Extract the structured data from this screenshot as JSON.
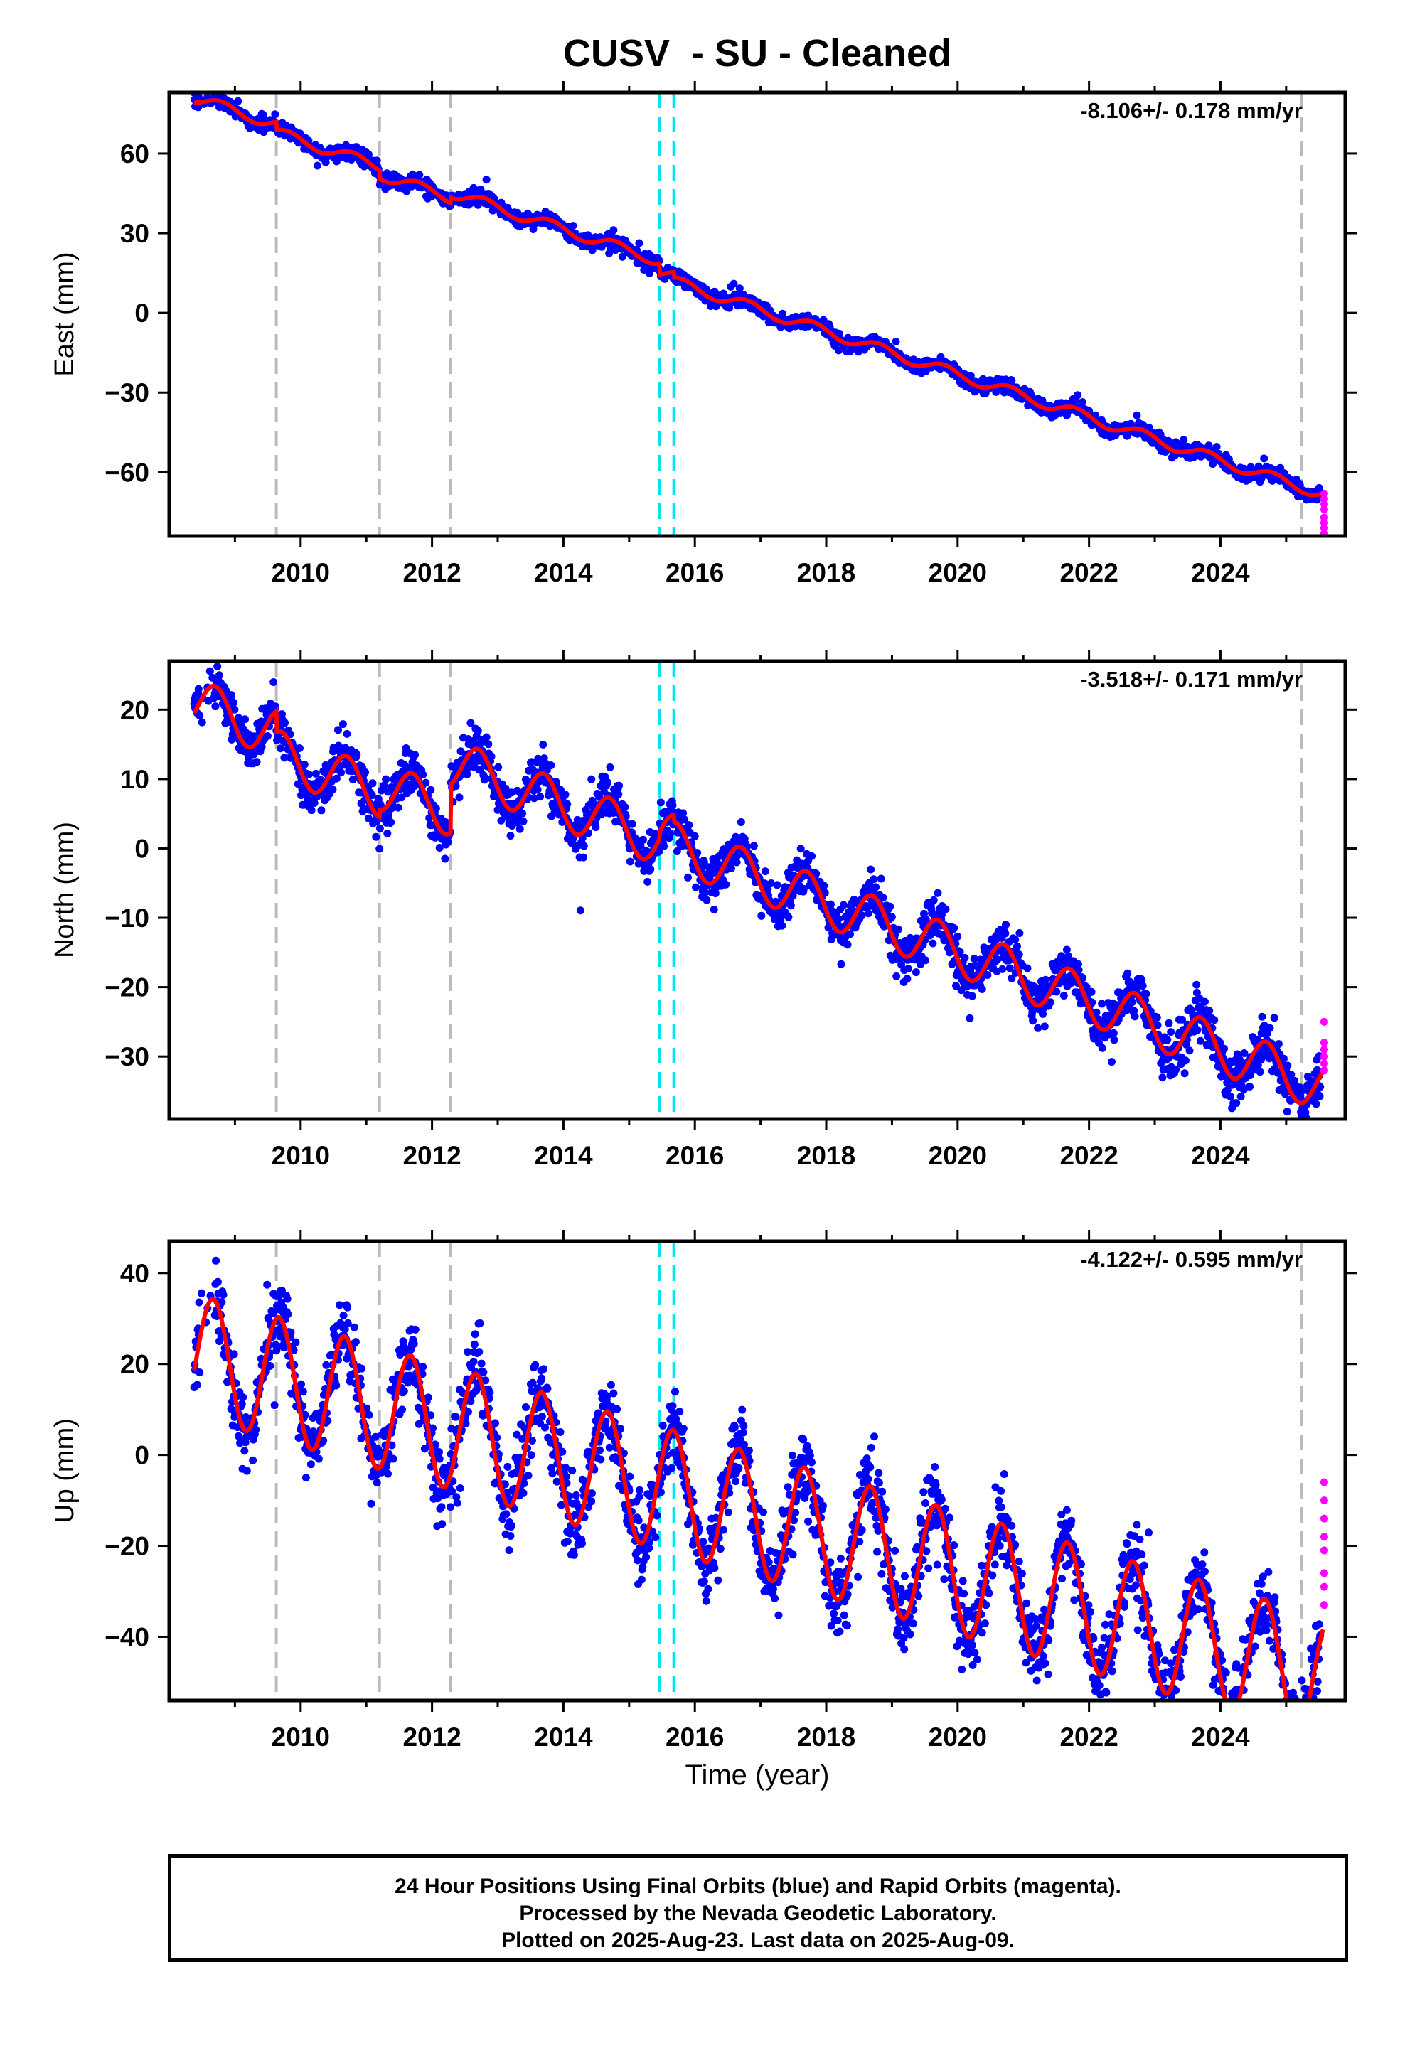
{
  "title": "CUSV  - SU - Cleaned",
  "colors": {
    "final_orbits": "#0000ff",
    "rapid_orbits": "#ff00ff",
    "model": "#ff0000",
    "equipment_change": "#bbbbbb",
    "other_event": "#00e5ee"
  },
  "footer": {
    "line1": "24 Hour Positions Using Final Orbits (blue) and Rapid Orbits (magenta).",
    "line2": "Processed by the Nevada Geodetic Laboratory.",
    "line3": "Plotted on 2025-Aug-23. Last data on 2025-Aug-09."
  },
  "chart_data": {
    "type": "scatter",
    "xlabel": "Time (year)",
    "xlim": [
      2008.0,
      2025.9
    ],
    "x_ticks": [
      2010,
      2012,
      2014,
      2016,
      2018,
      2020,
      2022,
      2024
    ],
    "event_lines": {
      "gray_dashed": [
        2009.63,
        2011.2,
        2012.28,
        2025.23
      ],
      "cyan_dashed": [
        2015.46,
        2015.68
      ]
    },
    "panels": [
      {
        "id": "east",
        "ylabel": "East (mm)",
        "ylim": [
          -84,
          83
        ],
        "y_ticks": [
          60,
          30,
          0,
          -30,
          -60
        ],
        "rate_label": "-8.106+/- 0.178 mm/yr",
        "model": {
          "x0": 2008.38,
          "y0": 81,
          "trend": -8.106,
          "annual_amp": 2.0,
          "phase": 0.55,
          "offsets": [
            [
              2009.63,
              -3.0
            ],
            [
              2011.2,
              -3.0
            ],
            [
              2012.28,
              2.0
            ],
            [
              2015.46,
              -4.0
            ],
            [
              2015.68,
              -2.0
            ]
          ]
        },
        "rapid_points": [
          [
            2025.58,
            -68
          ],
          [
            2025.58,
            -70
          ],
          [
            2025.58,
            -72
          ],
          [
            2025.58,
            -74
          ],
          [
            2025.58,
            -77
          ],
          [
            2025.58,
            -79
          ],
          [
            2025.58,
            -81
          ],
          [
            2025.58,
            -83
          ]
        ]
      },
      {
        "id": "north",
        "ylabel": "North (mm)",
        "ylim": [
          -39,
          27
        ],
        "y_ticks": [
          20,
          10,
          0,
          -10,
          -20,
          -30
        ],
        "rate_label": "-3.518+/- 0.171 mm/yr",
        "model": {
          "x0": 2008.38,
          "y0": 21,
          "trend": -3.518,
          "annual_amp": 3.5,
          "phase": 0.45,
          "offsets": [
            [
              2009.63,
              -3.0
            ],
            [
              2011.2,
              1.0
            ],
            [
              2012.28,
              7.0
            ],
            [
              2015.46,
              1.0
            ],
            [
              2015.68,
              -1.0
            ]
          ]
        },
        "rapid_points": [
          [
            2025.58,
            -25
          ],
          [
            2025.58,
            -28
          ],
          [
            2025.58,
            -29
          ],
          [
            2025.58,
            -30
          ],
          [
            2025.58,
            -31
          ],
          [
            2025.58,
            -32
          ]
        ]
      },
      {
        "id": "up",
        "ylabel": "Up (mm)",
        "ylim": [
          -54,
          47
        ],
        "y_ticks": [
          40,
          20,
          0,
          -20,
          -40
        ],
        "rate_label": "-4.122+/- 0.595 mm/yr",
        "model": {
          "x0": 2008.38,
          "y0": 22,
          "trend": -4.122,
          "annual_amp": 13.5,
          "phase": 0.42,
          "offsets": [
            [
              2009.63,
              0.0
            ],
            [
              2011.2,
              0.0
            ],
            [
              2012.28,
              0.0
            ],
            [
              2015.46,
              0.0
            ],
            [
              2015.68,
              0.0
            ]
          ]
        },
        "rapid_points": [
          [
            2025.58,
            -6
          ],
          [
            2025.58,
            -10
          ],
          [
            2025.58,
            -14
          ],
          [
            2025.58,
            -18
          ],
          [
            2025.58,
            -21
          ],
          [
            2025.58,
            -26
          ],
          [
            2025.58,
            -29
          ],
          [
            2025.58,
            -33
          ]
        ]
      }
    ]
  }
}
